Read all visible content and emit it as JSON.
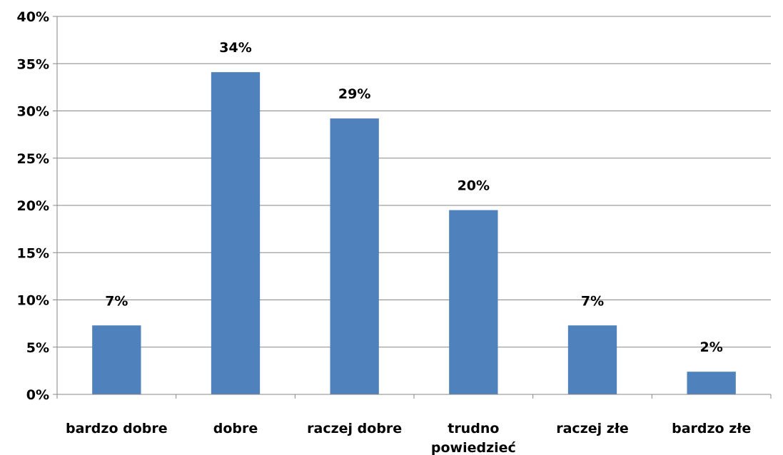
{
  "chart_data": {
    "type": "bar",
    "categories": [
      "bardzo dobre",
      "dobre",
      "raczej dobre",
      "trudno powiedzieć",
      "raczej złe",
      "bardzo złe"
    ],
    "category_lines": [
      [
        "bardzo dobre"
      ],
      [
        "dobre"
      ],
      [
        "raczej dobre"
      ],
      [
        "trudno",
        "powiedzieć"
      ],
      [
        "raczej złe"
      ],
      [
        "bardzo złe"
      ]
    ],
    "values": [
      7.3,
      34.1,
      29.2,
      19.5,
      7.3,
      2.4
    ],
    "data_labels": [
      "7%",
      "34%",
      "29%",
      "20%",
      "7%",
      "2%"
    ],
    "ylim": [
      0,
      40
    ],
    "yticks": [
      0,
      5,
      10,
      15,
      20,
      25,
      30,
      35,
      40
    ],
    "ytick_labels": [
      "0%",
      "5%",
      "10%",
      "15%",
      "20%",
      "25%",
      "30%",
      "35%",
      "40%"
    ],
    "grid": true,
    "legend": false,
    "title": "",
    "xlabel": "",
    "ylabel": "",
    "bar_color": "#4f81bd",
    "grid_color": "#878787",
    "axis_color": "#878787"
  }
}
